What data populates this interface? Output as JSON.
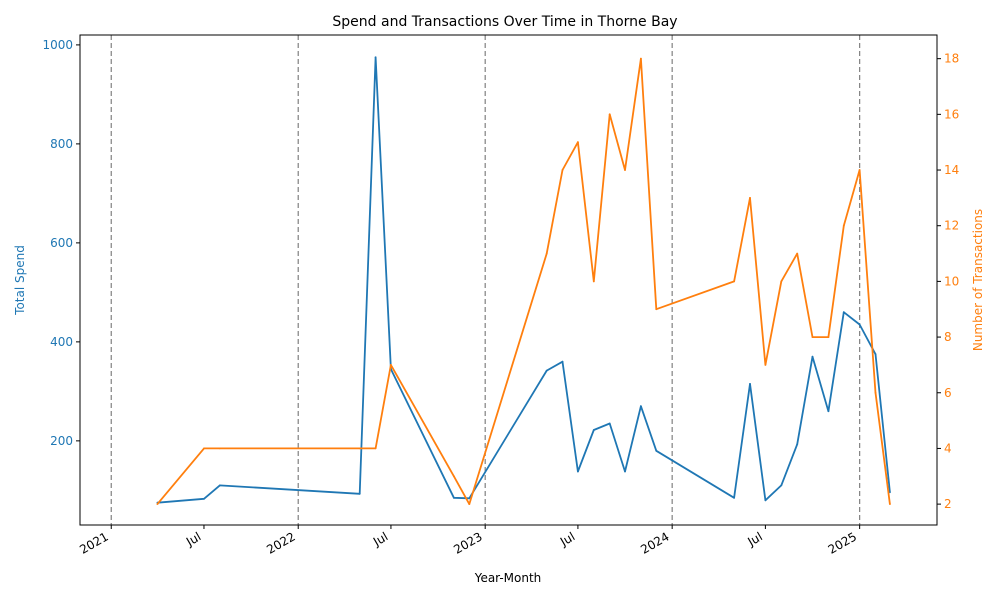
{
  "chart_data": {
    "type": "line",
    "title": "Spend and Transactions Over Time in Thorne Bay",
    "xlabel": "Year-Month",
    "ylabel_left": "Total Spend",
    "ylabel_right": "Number of Transactions",
    "xlim": [
      "2020-11-01",
      "2025-06-01"
    ],
    "ylim_left": [
      30,
      1020
    ],
    "ylim_right": [
      1.25,
      18.85
    ],
    "x_ticks": [
      {
        "date": "2021-01-01",
        "label": "2021"
      },
      {
        "date": "2021-07-01",
        "label": "Jul"
      },
      {
        "date": "2022-01-01",
        "label": "2022"
      },
      {
        "date": "2022-07-01",
        "label": "Jul"
      },
      {
        "date": "2023-01-01",
        "label": "2023"
      },
      {
        "date": "2023-07-01",
        "label": "Jul"
      },
      {
        "date": "2024-01-01",
        "label": "2024"
      },
      {
        "date": "2024-07-01",
        "label": "Jul"
      },
      {
        "date": "2025-01-01",
        "label": "2025"
      }
    ],
    "year_lines": [
      "2021-01-01",
      "2022-01-01",
      "2023-01-01",
      "2024-01-01",
      "2025-01-01"
    ],
    "y_ticks_left": [
      200,
      400,
      600,
      800,
      1000
    ],
    "y_ticks_right": [
      2,
      4,
      6,
      8,
      10,
      12,
      14,
      16,
      18
    ],
    "colors": {
      "spend": "#1f77b4",
      "transactions": "#ff7f0e",
      "year_line": "#808080"
    },
    "series": [
      {
        "key": "spend",
        "axis": "left",
        "x": [
          "2021-04-01",
          "2021-07-01",
          "2021-08-01",
          "2022-05-01",
          "2022-06-01",
          "2022-07-01",
          "2022-11-01",
          "2022-12-01",
          "2023-05-01",
          "2023-06-01",
          "2023-07-01",
          "2023-08-01",
          "2023-09-01",
          "2023-10-01",
          "2023-11-01",
          "2023-12-01",
          "2024-05-01",
          "2024-06-01",
          "2024-07-01",
          "2024-08-01",
          "2024-09-01",
          "2024-10-01",
          "2024-11-01",
          "2024-12-01",
          "2025-01-01",
          "2025-02-01",
          "2025-03-01"
        ],
        "values": [
          75,
          83,
          110,
          93,
          975,
          345,
          85,
          84,
          342,
          360,
          138,
          222,
          235,
          138,
          270,
          180,
          85,
          315,
          80,
          110,
          193,
          370,
          260,
          460,
          435,
          375,
          96
        ]
      },
      {
        "key": "transactions",
        "axis": "right",
        "x": [
          "2021-04-01",
          "2021-07-01",
          "2021-08-01",
          "2022-05-01",
          "2022-06-01",
          "2022-07-01",
          "2022-11-01",
          "2022-12-01",
          "2023-05-01",
          "2023-06-01",
          "2023-07-01",
          "2023-08-01",
          "2023-09-01",
          "2023-10-01",
          "2023-11-01",
          "2023-12-01",
          "2024-05-01",
          "2024-06-01",
          "2024-07-01",
          "2024-08-01",
          "2024-09-01",
          "2024-10-01",
          "2024-11-01",
          "2024-12-01",
          "2025-01-01",
          "2025-02-01",
          "2025-03-01"
        ],
        "values": [
          2,
          4,
          4,
          4,
          4,
          7,
          3,
          2,
          11,
          14,
          15,
          10,
          16,
          14,
          18,
          9,
          10,
          13,
          7,
          10,
          11,
          8,
          8,
          12,
          14,
          6,
          2
        ]
      }
    ],
    "grid": false,
    "legend": "none"
  }
}
